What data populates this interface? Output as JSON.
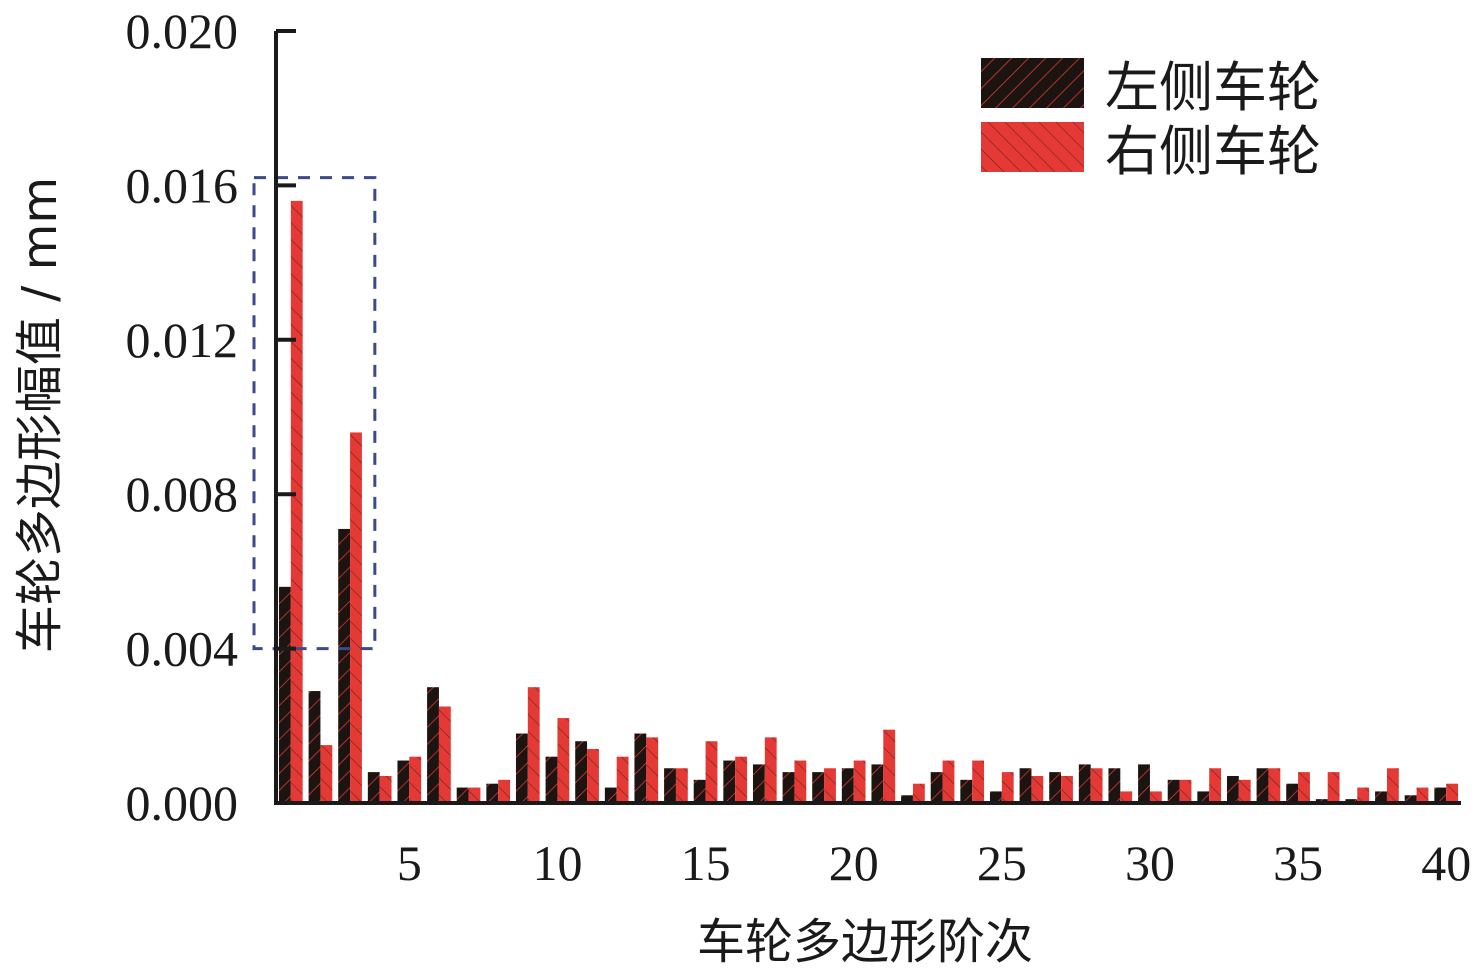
{
  "chart_data": {
    "type": "bar",
    "title": "",
    "xlabel": "车轮多边形阶次",
    "ylabel": "车轮多边形幅值 / mm",
    "xlim": [
      0.5,
      40.5
    ],
    "ylim": [
      0,
      0.02
    ],
    "x_ticks": [
      5,
      10,
      15,
      20,
      25,
      30,
      35,
      40
    ],
    "x_tick_labels": [
      "5",
      "10",
      "15",
      "20",
      "25",
      "30",
      "35",
      "40"
    ],
    "y_ticks": [
      0,
      0.004,
      0.008,
      0.012,
      0.016,
      0.02
    ],
    "y_tick_labels": [
      "0.000",
      "0.004",
      "0.008",
      "0.012",
      "0.016",
      "0.020"
    ],
    "grid": false,
    "legend_position": "top-right",
    "categories": [
      1,
      2,
      3,
      4,
      5,
      6,
      7,
      8,
      9,
      10,
      11,
      12,
      13,
      14,
      15,
      16,
      17,
      18,
      19,
      20,
      21,
      22,
      23,
      24,
      25,
      26,
      27,
      28,
      29,
      30,
      31,
      32,
      33,
      34,
      35,
      36,
      37,
      38,
      39,
      40
    ],
    "series": [
      {
        "name": "左侧车轮",
        "color": "#1b1410",
        "values": [
          0.0056,
          0.0029,
          0.0071,
          0.0008,
          0.0011,
          0.003,
          0.0004,
          0.0005,
          0.0018,
          0.0012,
          0.0016,
          0.0004,
          0.0018,
          0.0009,
          0.0006,
          0.0011,
          0.001,
          0.0008,
          0.0008,
          0.0009,
          0.001,
          0.0002,
          0.0008,
          0.0006,
          0.0003,
          0.0009,
          0.0008,
          0.001,
          0.0009,
          0.001,
          0.0006,
          0.0003,
          0.0007,
          0.0009,
          0.0005,
          0.0001,
          0.0001,
          0.0003,
          0.0002,
          0.0004
        ]
      },
      {
        "name": "右侧车轮",
        "color": "#e53935",
        "values": [
          0.0156,
          0.0015,
          0.0096,
          0.0007,
          0.0012,
          0.0025,
          0.0004,
          0.0006,
          0.003,
          0.0022,
          0.0014,
          0.0012,
          0.0017,
          0.0009,
          0.0016,
          0.0012,
          0.0017,
          0.0011,
          0.0009,
          0.0011,
          0.0019,
          0.0005,
          0.0011,
          0.0011,
          0.0008,
          0.0007,
          0.0007,
          0.0009,
          0.0003,
          0.0003,
          0.0006,
          0.0009,
          0.0006,
          0.0009,
          0.0008,
          0.0008,
          0.0004,
          0.0009,
          0.0004,
          0.0005
        ]
      }
    ],
    "highlight_box": {
      "x_from": 0.5,
      "x_to": 3.6,
      "y_from": 0.004,
      "y_to": 0.0162,
      "color": "#3a4a8c"
    }
  }
}
